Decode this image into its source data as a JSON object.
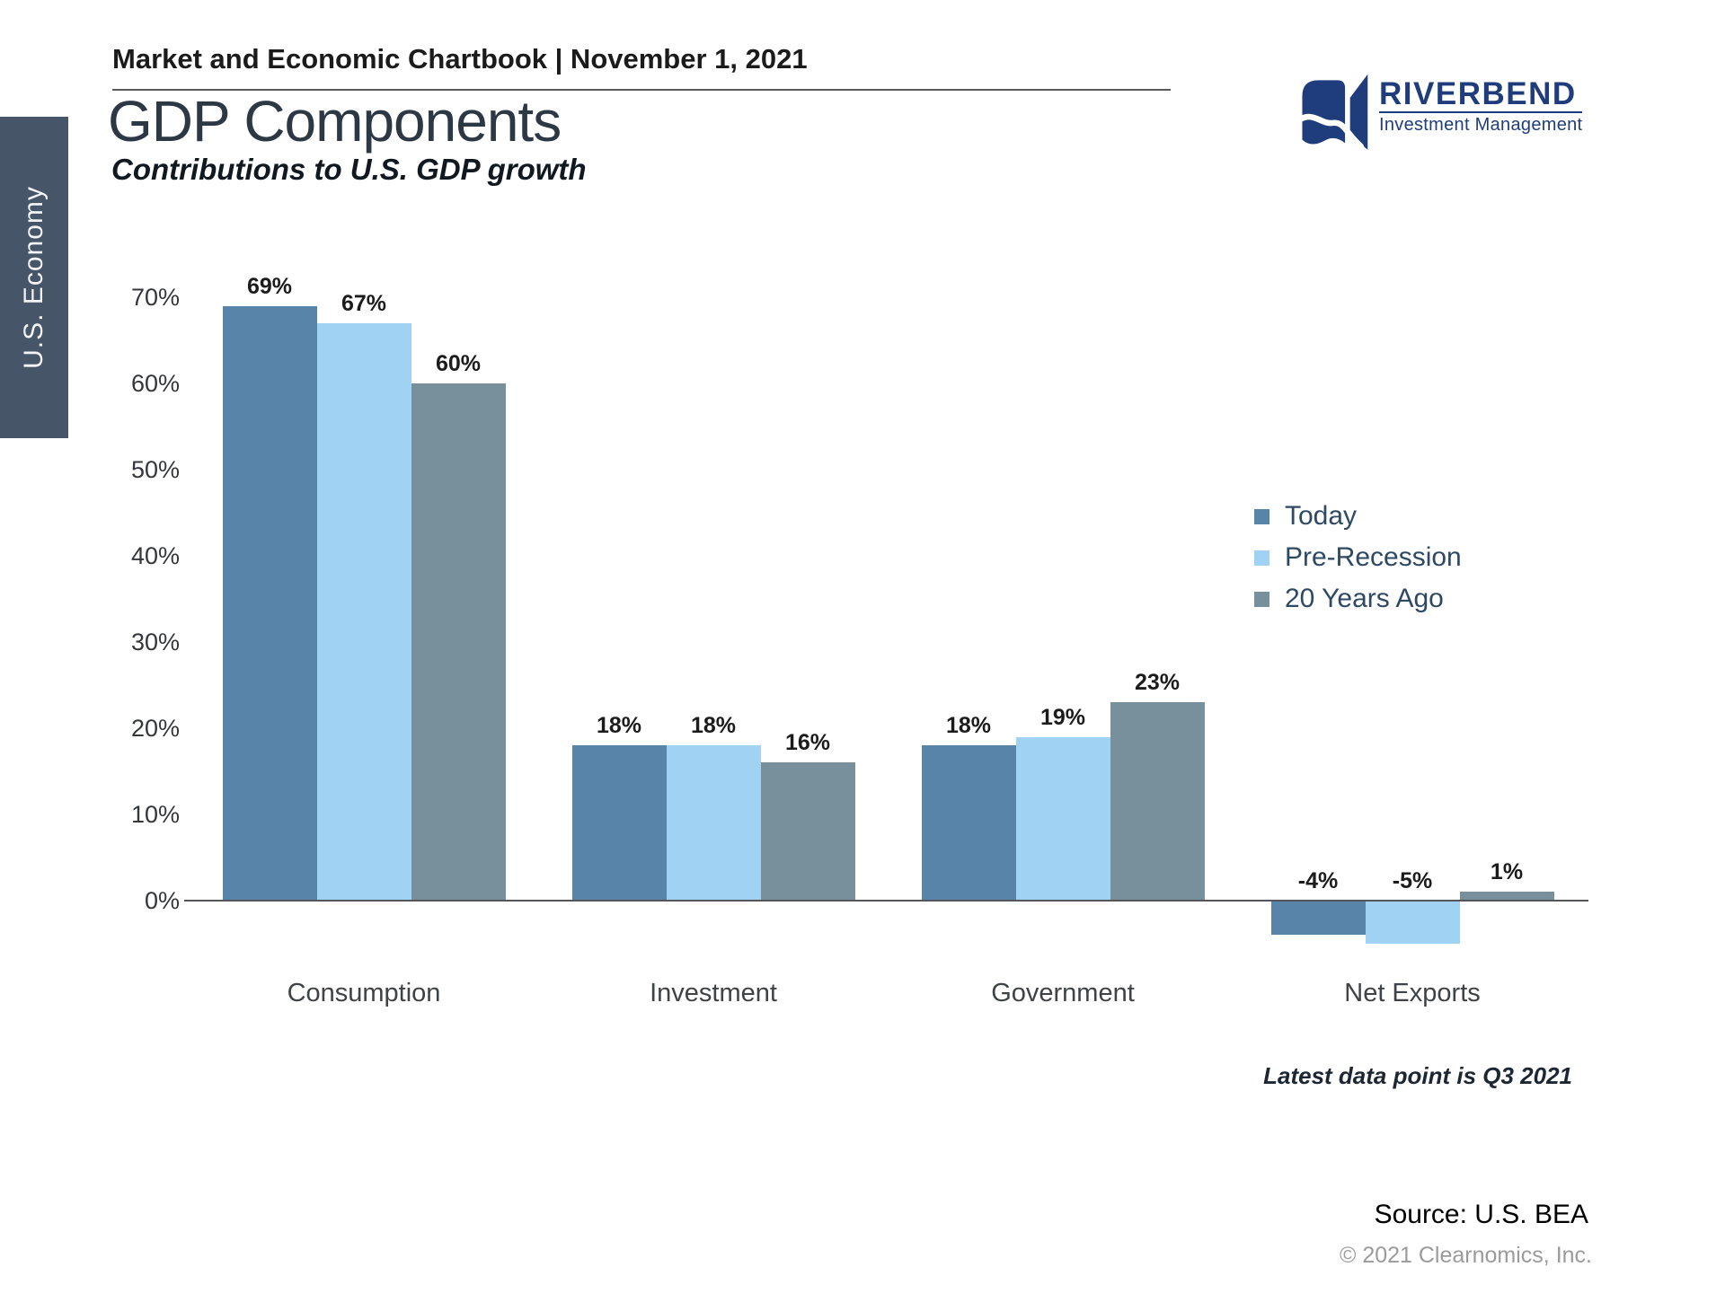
{
  "page": {
    "header": "Market and Economic Chartbook | November 1, 2021",
    "sidebar_tab": "U.S. Economy",
    "title": "GDP Components",
    "subtitle": "Contributions to U.S. GDP growth",
    "footnote": "Latest data point is Q3 2021",
    "source": "Source: U.S. BEA",
    "copyright": "© 2021 Clearnomics, Inc."
  },
  "logo": {
    "name": "RIVERBEND",
    "tagline": "Investment Management",
    "color": "#1f3d7c"
  },
  "colors": {
    "sidebar_tab_background": "#475569",
    "sidebar_tab_text": "#f3f5f7",
    "title_text": "#2d3845",
    "axis_line": "#55565a",
    "legend_text": "#2d4963",
    "copyright_text": "#9b9b9b"
  },
  "chart_data": {
    "type": "bar",
    "title": "GDP Components",
    "subtitle": "Contributions to U.S. GDP growth",
    "categories": [
      "Consumption",
      "Investment",
      "Government",
      "Net Exports"
    ],
    "series": [
      {
        "name": "Today",
        "color": "#5784a8",
        "values": [
          69,
          18,
          18,
          -4
        ]
      },
      {
        "name": "Pre-Recession",
        "color": "#a0d2f4",
        "values": [
          67,
          18,
          19,
          -5
        ]
      },
      {
        "name": "20 Years Ago",
        "color": "#78909b",
        "values": [
          60,
          16,
          23,
          1
        ]
      }
    ],
    "value_suffix": "%",
    "data_labels": [
      [
        "69%",
        "18%",
        "18%",
        "-4%"
      ],
      [
        "67%",
        "18%",
        "19%",
        "-5%"
      ],
      [
        "60%",
        "16%",
        "23%",
        "1%"
      ]
    ],
    "y_axis": {
      "tick_values": [
        0,
        10,
        20,
        30,
        40,
        50,
        60,
        70
      ],
      "tick_labels": [
        "0%",
        "10%",
        "20%",
        "30%",
        "40%",
        "50%",
        "60%",
        "70%"
      ]
    },
    "ylim": [
      -7,
      72
    ],
    "grid": false,
    "legend_position": "right",
    "footnote": "Latest data point is Q3 2021",
    "source": "Source: U.S. BEA"
  }
}
